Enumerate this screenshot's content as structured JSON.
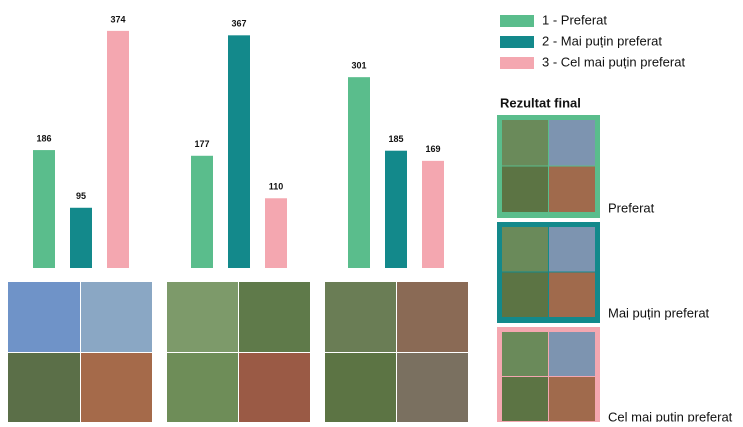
{
  "chart_data": {
    "type": "bar",
    "categories": [
      null,
      null,
      null
    ],
    "series": [
      {
        "name": "1 - Preferat",
        "color": "#5abd8c",
        "values": [
          186,
          177,
          301
        ]
      },
      {
        "name": "2 - Mai puțin preferat",
        "color": "#13898b",
        "values": [
          95,
          367,
          185
        ]
      },
      {
        "name": "3 - Cel mai puțin preferat",
        "color": "#f4a7b0",
        "values": [
          374,
          110,
          169
        ]
      }
    ]
  },
  "final_result": {
    "title": "Rezultat final",
    "labels": [
      "Preferat",
      "Mai puțin preferat",
      "Cel mai puțin preferat"
    ]
  }
}
